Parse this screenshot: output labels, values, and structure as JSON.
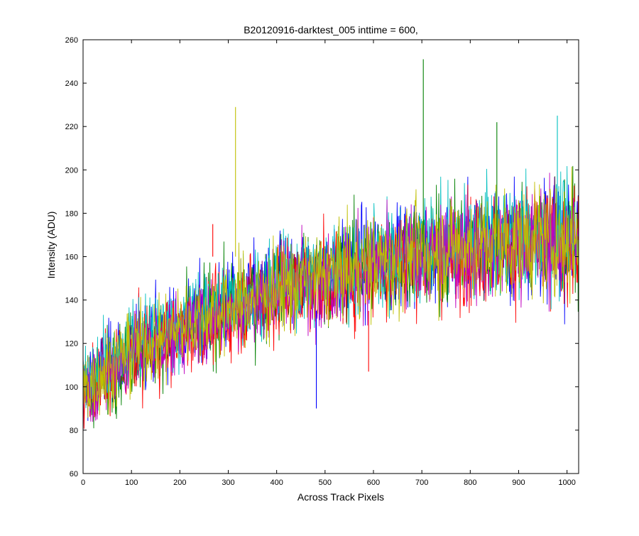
{
  "chart_data": {
    "type": "line",
    "title": "B20120916-darktest_005 inttime = 600,",
    "xlabel": "Across Track Pixels",
    "ylabel": "Intensity (ADU)",
    "xlim": [
      0,
      1024
    ],
    "ylim": [
      60,
      260
    ],
    "xticks": [
      "0",
      "100",
      "200",
      "300",
      "400",
      "500",
      "600",
      "700",
      "800",
      "900",
      "1000"
    ],
    "yticks": [
      "60",
      "80",
      "100",
      "120",
      "140",
      "160",
      "180",
      "200",
      "220",
      "240",
      "260"
    ],
    "grid": false,
    "legend": "none",
    "series": [
      {
        "color": "#0000ff",
        "anchors_x": [
          0,
          100,
          200,
          300,
          400,
          500,
          600,
          700,
          800,
          900,
          1024
        ],
        "anchors_y": [
          100,
          118,
          128,
          138,
          146,
          152,
          158,
          163,
          166,
          168,
          170
        ]
      },
      {
        "color": "#008000",
        "anchors_x": [
          0,
          100,
          200,
          300,
          400,
          500,
          600,
          700,
          800,
          900,
          1024
        ],
        "anchors_y": [
          98,
          116,
          126,
          136,
          145,
          151,
          157,
          162,
          165,
          167,
          169
        ]
      },
      {
        "color": "#ff0000",
        "anchors_x": [
          0,
          100,
          200,
          300,
          400,
          500,
          600,
          700,
          800,
          900,
          1024
        ],
        "anchors_y": [
          96,
          114,
          124,
          134,
          143,
          149,
          155,
          160,
          163,
          165,
          166
        ]
      },
      {
        "color": "#00bfbf",
        "anchors_x": [
          0,
          100,
          200,
          300,
          400,
          500,
          600,
          700,
          800,
          900,
          1024
        ],
        "anchors_y": [
          100,
          119,
          129,
          139,
          147,
          153,
          159,
          164,
          167,
          169,
          171
        ]
      },
      {
        "color": "#bf00bf",
        "anchors_x": [
          0,
          100,
          200,
          300,
          400,
          500,
          600,
          700,
          800,
          900,
          1024
        ],
        "anchors_y": [
          97,
          115,
          125,
          135,
          144,
          150,
          156,
          161,
          164,
          166,
          167
        ]
      },
      {
        "color": "#bfbf00",
        "anchors_x": [
          0,
          100,
          200,
          300,
          400,
          500,
          600,
          700,
          800,
          900,
          1024
        ],
        "anchors_y": [
          99,
          117,
          127,
          137,
          145,
          151,
          157,
          162,
          165,
          167,
          168
        ]
      }
    ],
    "spikes": [
      {
        "x": 315,
        "y": 229,
        "color": "#bfbf00"
      },
      {
        "x": 703,
        "y": 251,
        "color": "#008000"
      },
      {
        "x": 855,
        "y": 222,
        "color": "#008000"
      },
      {
        "x": 980,
        "y": 225,
        "color": "#00bfbf"
      },
      {
        "x": 268,
        "y": 175,
        "color": "#ff0000"
      },
      {
        "x": 482,
        "y": 90,
        "color": "#0000ff"
      },
      {
        "x": 590,
        "y": 107,
        "color": "#ff0000"
      }
    ]
  }
}
